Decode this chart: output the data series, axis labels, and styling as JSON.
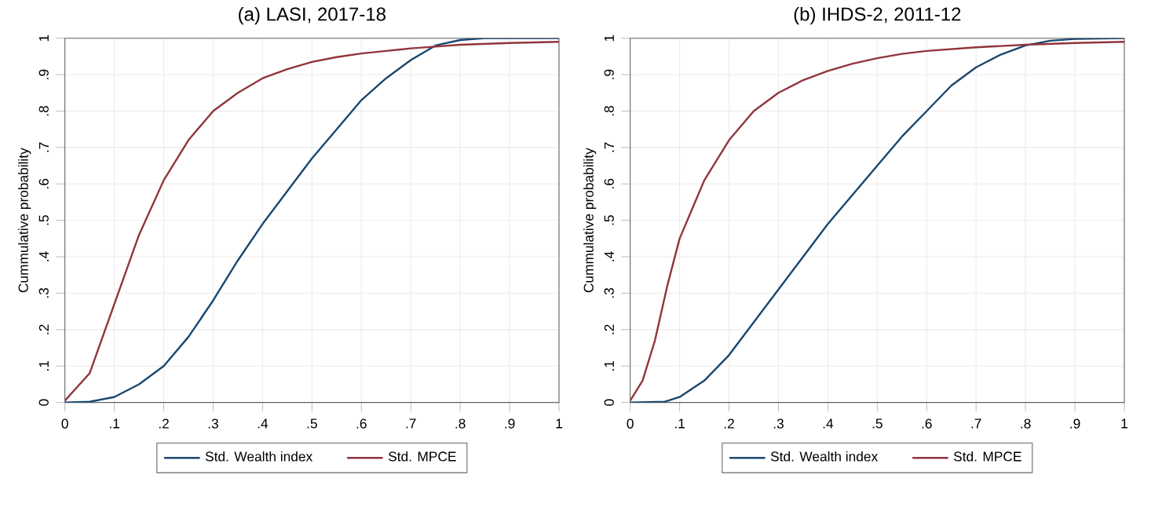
{
  "chart_data": [
    {
      "type": "line",
      "title": "(a) LASI, 2017-18",
      "ylabel": "Cummulative probability",
      "xlim": [
        0,
        1
      ],
      "ylim": [
        0,
        1
      ],
      "xticks": [
        0,
        {
          "value": 0.1,
          "label": ".1"
        },
        {
          "value": 0.2,
          "label": ".2"
        },
        {
          "value": 0.3,
          "label": ".3"
        },
        {
          "value": 0.4,
          "label": ".4"
        },
        {
          "value": 0.5,
          "label": ".5"
        },
        {
          "value": 0.6,
          "label": ".6"
        },
        {
          "value": 0.7,
          "label": ".7"
        },
        {
          "value": 0.8,
          "label": ".8"
        },
        {
          "value": 0.9,
          "label": ".9"
        },
        1
      ],
      "yticks": [
        0,
        {
          "value": 0.1,
          "label": ".1"
        },
        {
          "value": 0.2,
          "label": ".2"
        },
        {
          "value": 0.3,
          "label": ".3"
        },
        {
          "value": 0.4,
          "label": ".4"
        },
        {
          "value": 0.5,
          "label": ".5"
        },
        {
          "value": 0.6,
          "label": ".6"
        },
        {
          "value": 0.7,
          "label": ".7"
        },
        {
          "value": 0.8,
          "label": ".8"
        },
        {
          "value": 0.9,
          "label": ".9"
        },
        1
      ],
      "grid": true,
      "legend": "bottom",
      "series": [
        {
          "name": "Std. Wealth index",
          "color": "#1a476f",
          "x": [
            0,
            0.05,
            0.1,
            0.15,
            0.2,
            0.25,
            0.3,
            0.35,
            0.4,
            0.45,
            0.5,
            0.55,
            0.6,
            0.65,
            0.7,
            0.75,
            0.8,
            0.85,
            0.9,
            1
          ],
          "values": [
            0,
            0.002,
            0.015,
            0.05,
            0.1,
            0.18,
            0.28,
            0.39,
            0.49,
            0.58,
            0.67,
            0.75,
            0.83,
            0.89,
            0.94,
            0.98,
            0.995,
            1,
            1,
            1
          ]
        },
        {
          "name": "Std. MPCE",
          "color": "#90353b",
          "x": [
            0,
            0.05,
            0.1,
            0.15,
            0.2,
            0.25,
            0.3,
            0.35,
            0.4,
            0.45,
            0.5,
            0.55,
            0.6,
            0.65,
            0.7,
            0.75,
            0.8,
            0.9,
            1
          ],
          "values": [
            0.005,
            0.08,
            0.27,
            0.46,
            0.61,
            0.72,
            0.8,
            0.85,
            0.89,
            0.915,
            0.935,
            0.948,
            0.958,
            0.965,
            0.972,
            0.977,
            0.982,
            0.987,
            0.99
          ]
        }
      ]
    },
    {
      "type": "line",
      "title": "(b) IHDS-2, 2011-12",
      "ylabel": "Cummulative probability",
      "xlim": [
        0,
        1
      ],
      "ylim": [
        0,
        1
      ],
      "xticks": [
        0,
        {
          "value": 0.1,
          "label": ".1"
        },
        {
          "value": 0.2,
          "label": ".2"
        },
        {
          "value": 0.3,
          "label": ".3"
        },
        {
          "value": 0.4,
          "label": ".4"
        },
        {
          "value": 0.5,
          "label": ".5"
        },
        {
          "value": 0.6,
          "label": ".6"
        },
        {
          "value": 0.7,
          "label": ".7"
        },
        {
          "value": 0.8,
          "label": ".8"
        },
        {
          "value": 0.9,
          "label": ".9"
        },
        1
      ],
      "yticks": [
        0,
        {
          "value": 0.1,
          "label": ".1"
        },
        {
          "value": 0.2,
          "label": ".2"
        },
        {
          "value": 0.3,
          "label": ".3"
        },
        {
          "value": 0.4,
          "label": ".4"
        },
        {
          "value": 0.5,
          "label": ".5"
        },
        {
          "value": 0.6,
          "label": ".6"
        },
        {
          "value": 0.7,
          "label": ".7"
        },
        {
          "value": 0.8,
          "label": ".8"
        },
        {
          "value": 0.9,
          "label": ".9"
        },
        1
      ],
      "grid": true,
      "legend": "bottom",
      "series": [
        {
          "name": "Std. Wealth index",
          "color": "#1a476f",
          "x": [
            0,
            0.07,
            0.1,
            0.15,
            0.2,
            0.25,
            0.3,
            0.35,
            0.4,
            0.45,
            0.5,
            0.55,
            0.6,
            0.65,
            0.7,
            0.75,
            0.8,
            0.85,
            0.9,
            1
          ],
          "values": [
            0,
            0.002,
            0.015,
            0.06,
            0.13,
            0.22,
            0.31,
            0.4,
            0.49,
            0.57,
            0.65,
            0.73,
            0.8,
            0.87,
            0.92,
            0.955,
            0.98,
            0.993,
            0.998,
            1
          ]
        },
        {
          "name": "Std. MPCE",
          "color": "#90353b",
          "x": [
            0,
            0.025,
            0.05,
            0.075,
            0.1,
            0.15,
            0.2,
            0.25,
            0.3,
            0.35,
            0.4,
            0.45,
            0.5,
            0.55,
            0.6,
            0.7,
            0.8,
            0.9,
            1
          ],
          "values": [
            0.005,
            0.06,
            0.17,
            0.32,
            0.45,
            0.61,
            0.72,
            0.8,
            0.85,
            0.885,
            0.91,
            0.93,
            0.945,
            0.957,
            0.965,
            0.975,
            0.982,
            0.987,
            0.99
          ]
        }
      ]
    }
  ]
}
